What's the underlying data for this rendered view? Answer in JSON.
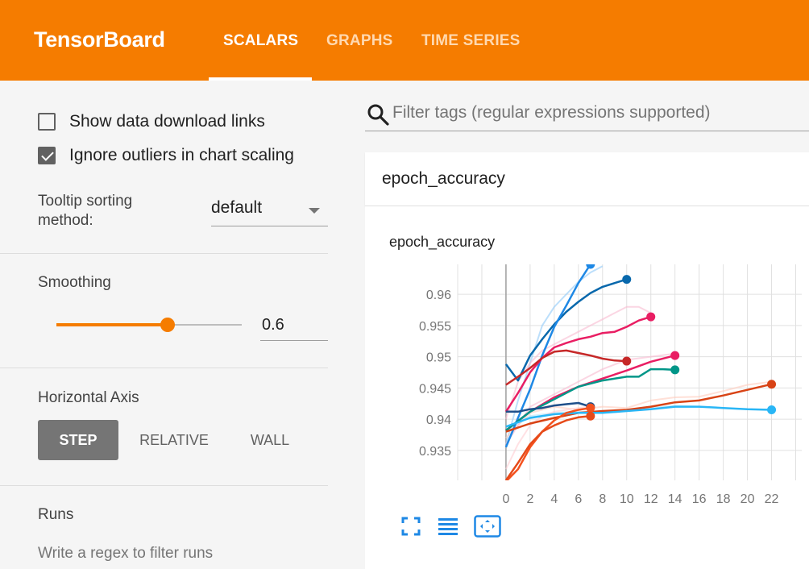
{
  "header": {
    "brand": "TensorBoard",
    "tabs": [
      {
        "label": "SCALARS",
        "active": true
      },
      {
        "label": "GRAPHS",
        "active": false
      },
      {
        "label": "TIME SERIES",
        "active": false
      }
    ],
    "color": "#f57c00"
  },
  "sidebar": {
    "show_download_links": {
      "label": "Show data download links",
      "checked": false
    },
    "ignore_outliers": {
      "label": "Ignore outliers in chart scaling",
      "checked": true
    },
    "tooltip_sorting": {
      "label": "Tooltip sorting method:",
      "value": "default"
    },
    "smoothing": {
      "label": "Smoothing",
      "value": "0.6",
      "fraction": 0.6
    },
    "horizontal_axis": {
      "label": "Horizontal Axis",
      "options": [
        "STEP",
        "RELATIVE",
        "WALL"
      ],
      "selected": "STEP"
    },
    "runs": {
      "label": "Runs",
      "filter_placeholder": "Write a regex to filter runs"
    }
  },
  "main": {
    "filter_placeholder": "Filter tags (regular expressions supported)",
    "card_title": "epoch_accuracy"
  },
  "chart_data": {
    "type": "line",
    "title": "epoch_accuracy",
    "xlabel": "",
    "ylabel": "",
    "x_ticks": [
      0,
      2,
      4,
      6,
      8,
      10,
      12,
      14,
      16,
      18,
      20,
      22
    ],
    "y_ticks": [
      0.935,
      0.94,
      0.945,
      0.95,
      0.955,
      0.96
    ],
    "xlim": [
      -4,
      24.5
    ],
    "ylim": [
      0.9302,
      0.9648
    ],
    "grid": true,
    "series": [
      {
        "color": "#0868ac",
        "x": [
          0,
          1,
          2,
          3,
          4,
          5,
          6,
          7,
          8,
          9,
          10
        ],
        "y": [
          0.9488,
          0.9462,
          0.9502,
          0.9528,
          0.9552,
          0.9572,
          0.9588,
          0.9602,
          0.9612,
          0.9618,
          0.9624
        ]
      },
      {
        "color": "#1e88e5",
        "x": [
          0,
          1,
          2,
          3,
          4,
          5,
          6,
          7
        ],
        "y": [
          0.9355,
          0.9402,
          0.9448,
          0.9502,
          0.9548,
          0.9582,
          0.9618,
          0.9648
        ]
      },
      {
        "color": "#e91e63",
        "x": [
          0,
          1,
          2,
          3,
          4,
          5,
          6,
          7,
          8,
          9,
          10,
          11,
          12
        ],
        "y": [
          0.9412,
          0.9442,
          0.9475,
          0.9498,
          0.9515,
          0.9522,
          0.9528,
          0.9532,
          0.9538,
          0.954,
          0.9548,
          0.9558,
          0.9564
        ]
      },
      {
        "color": "#e91e63",
        "x": [
          0,
          2,
          4,
          6,
          8,
          10,
          12,
          14
        ],
        "y": [
          0.9382,
          0.9412,
          0.9435,
          0.9452,
          0.9465,
          0.9478,
          0.9492,
          0.9502
        ]
      },
      {
        "color": "#c62828",
        "x": [
          0,
          1,
          2,
          3,
          4,
          5,
          6,
          7,
          8,
          9,
          10
        ],
        "y": [
          0.9455,
          0.9468,
          0.9482,
          0.9498,
          0.9508,
          0.951,
          0.9506,
          0.9502,
          0.9497,
          0.9494,
          0.9493
        ]
      },
      {
        "color": "#009688",
        "x": [
          0,
          2,
          4,
          6,
          8,
          10,
          11,
          12,
          13,
          14
        ],
        "y": [
          0.9382,
          0.9412,
          0.9432,
          0.9452,
          0.9462,
          0.9468,
          0.9468,
          0.948,
          0.948,
          0.9479
        ]
      },
      {
        "color": "#d84315",
        "x": [
          0,
          2,
          4,
          6,
          8,
          10,
          12,
          14,
          16,
          18,
          20,
          22
        ],
        "y": [
          0.938,
          0.9393,
          0.9402,
          0.941,
          0.9413,
          0.9415,
          0.942,
          0.9427,
          0.943,
          0.9438,
          0.9447,
          0.9456
        ]
      },
      {
        "color": "#29b6f6",
        "x": [
          0,
          2,
          4,
          6,
          8,
          10,
          12,
          14,
          16,
          18,
          20,
          22
        ],
        "y": [
          0.9388,
          0.9402,
          0.9408,
          0.941,
          0.941,
          0.9413,
          0.9416,
          0.942,
          0.942,
          0.9418,
          0.9416,
          0.9415
        ]
      },
      {
        "color": "#1e4f8a",
        "x": [
          0,
          1,
          2,
          3,
          4,
          5,
          6,
          7
        ],
        "y": [
          0.9412,
          0.9412,
          0.9416,
          0.9418,
          0.9422,
          0.9424,
          0.9426,
          0.942
        ]
      },
      {
        "color": "#f4511e",
        "x": [
          0,
          1,
          2,
          3,
          4,
          5,
          6,
          7
        ],
        "y": [
          0.93,
          0.932,
          0.9355,
          0.938,
          0.9398,
          0.941,
          0.9415,
          0.9418
        ]
      },
      {
        "color": "#e64a19",
        "x": [
          0,
          1,
          2,
          3,
          4,
          5,
          6,
          7
        ],
        "y": [
          0.9302,
          0.933,
          0.936,
          0.938,
          0.939,
          0.9398,
          0.9403,
          0.9405
        ]
      }
    ],
    "faint_series": [
      {
        "color": "#90caf9",
        "x": [
          0,
          1,
          2,
          3,
          4,
          5,
          6,
          7,
          8
        ],
        "y": [
          0.936,
          0.943,
          0.949,
          0.955,
          0.958,
          0.96,
          0.962,
          0.9635,
          0.9645
        ]
      },
      {
        "color": "#f8bbd0",
        "x": [
          0,
          1,
          2,
          3,
          4,
          5,
          6,
          7,
          8,
          9,
          10,
          11,
          12
        ],
        "y": [
          0.94,
          0.946,
          0.949,
          0.951,
          0.952,
          0.953,
          0.954,
          0.955,
          0.956,
          0.957,
          0.958,
          0.958,
          0.957
        ]
      },
      {
        "color": "#ffccbc",
        "x": [
          0,
          2,
          4,
          6,
          8,
          10,
          12,
          14,
          16,
          18,
          20,
          22
        ],
        "y": [
          0.937,
          0.941,
          0.942,
          0.9415,
          0.942,
          0.9418,
          0.943,
          0.9435,
          0.9436,
          0.9445,
          0.9455,
          0.946
        ]
      },
      {
        "color": "#b3e5fc",
        "x": [
          0,
          2,
          4,
          6,
          8,
          10,
          12,
          14,
          16,
          18,
          20,
          22
        ],
        "y": [
          0.938,
          0.9405,
          0.941,
          0.9412,
          0.941,
          0.9415,
          0.9418,
          0.9422,
          0.942,
          0.9418,
          0.9416,
          0.9415
        ]
      },
      {
        "color": "#f8bbd0",
        "x": [
          0,
          2,
          4,
          6,
          8,
          10,
          12,
          14
        ],
        "y": [
          0.936,
          0.942,
          0.944,
          0.946,
          0.948,
          0.9495,
          0.95,
          0.9505
        ]
      },
      {
        "color": "#ffcdd2",
        "x": [
          0,
          1,
          2,
          3,
          4,
          5,
          6,
          7
        ],
        "y": [
          0.932,
          0.936,
          0.939,
          0.9405,
          0.9412,
          0.9415,
          0.9418,
          0.942
        ]
      }
    ]
  }
}
